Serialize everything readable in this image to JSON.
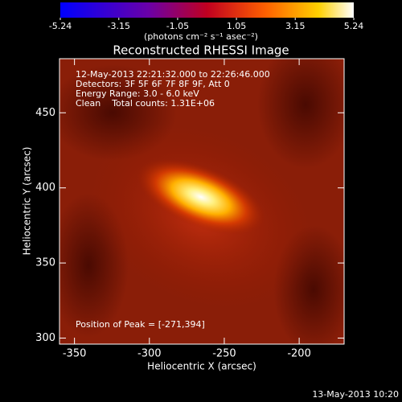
{
  "chart_data": {
    "type": "image",
    "title": "Reconstructed RHESSI Image",
    "colorbar": {
      "label": "(photons cm⁻² s⁻¹ asec⁻²)",
      "lim": [
        -5.24,
        5.24
      ],
      "ticks": [
        -5.24,
        -3.15,
        -1.05,
        1.05,
        3.15,
        5.24
      ]
    },
    "annotations": [
      "12-May-2013 22:21:32.000 to 22:26:46.000",
      "Detectors: 3F 5F 6F 7F 8F 9F, Att 0",
      "Energy Range: 3.0 - 6.0 keV",
      "Clean    Total counts: 1.31E+06"
    ],
    "peak_label": "Position of Peak = [-271,394]",
    "x_label": "Heliocentric X (arcsec)",
    "y_label": "Heliocentric Y (arcsec)",
    "xlim": [
      -360,
      -170
    ],
    "ylim": [
      296,
      486
    ],
    "xticks": [
      -350,
      -300,
      -250,
      -200
    ],
    "yticks": [
      300,
      350,
      400,
      450
    ],
    "timestamp": "13-May-2013 10:20"
  }
}
